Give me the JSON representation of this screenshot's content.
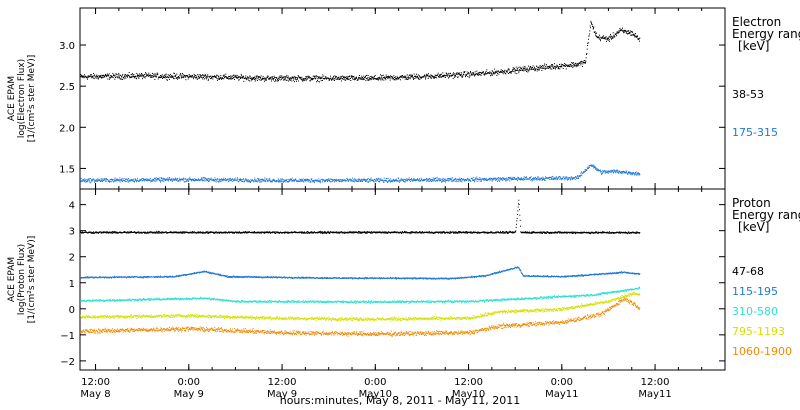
{
  "chart_data": {
    "type": "scatter",
    "x_range": [
      "2011-05-08T10:00",
      "2011-05-11T21:00"
    ],
    "x_ticks": [
      {
        "t": "2011-05-08T12:00",
        "time": "12:00",
        "date": "May 8"
      },
      {
        "t": "2011-05-09T00:00",
        "time": "0:00",
        "date": "May 9"
      },
      {
        "t": "2011-05-09T12:00",
        "time": "12:00",
        "date": "May 9"
      },
      {
        "t": "2011-05-10T00:00",
        "time": "0:00",
        "date": "May10"
      },
      {
        "t": "2011-05-10T12:00",
        "time": "12:00",
        "date": "May10"
      },
      {
        "t": "2011-05-11T00:00",
        "time": "0:00",
        "date": "May11"
      },
      {
        "t": "2011-05-11T12:00",
        "time": "12:00",
        "date": "May11"
      }
    ],
    "xlabel": "hours:minutes, May  8, 2011 - May 11, 2011",
    "panels": [
      {
        "id": "electron",
        "ylabel_lines": [
          "ACE EPAM",
          "log(Electron Flux)",
          "[1/(cm²s ster MeV)]"
        ],
        "ylim": [
          1.25,
          3.45
        ],
        "yticks": [
          1.5,
          2.0,
          2.5,
          3.0
        ],
        "ytick_labels": [
          "1.5",
          "2.0",
          "2.5",
          "3.0"
        ],
        "legend_title": [
          "Electron",
          "Energy ranges",
          "[keV]"
        ],
        "series": [
          {
            "name": "38-53",
            "color": "#000000",
            "points": [
              [
                "2011-05-08T10:00",
                2.62
              ],
              [
                "2011-05-08T18:00",
                2.63
              ],
              [
                "2011-05-09T02:00",
                2.62
              ],
              [
                "2011-05-09T10:00",
                2.6
              ],
              [
                "2011-05-09T18:00",
                2.6
              ],
              [
                "2011-05-10T00:00",
                2.6
              ],
              [
                "2011-05-10T08:00",
                2.63
              ],
              [
                "2011-05-10T14:00",
                2.66
              ],
              [
                "2011-05-10T20:00",
                2.72
              ],
              [
                "2011-05-11T02:00",
                2.77
              ],
              [
                "2011-05-11T03:00",
                2.8
              ],
              [
                "2011-05-11T03:40",
                3.28
              ],
              [
                "2011-05-11T04:30",
                3.1
              ],
              [
                "2011-05-11T06:00",
                3.08
              ],
              [
                "2011-05-11T07:30",
                3.18
              ],
              [
                "2011-05-11T09:00",
                3.15
              ],
              [
                "2011-05-11T10:00",
                3.07
              ]
            ]
          },
          {
            "name": "175-315",
            "color": "#1f78d6",
            "points": [
              [
                "2011-05-08T10:00",
                1.36
              ],
              [
                "2011-05-09T00:00",
                1.37
              ],
              [
                "2011-05-09T12:00",
                1.36
              ],
              [
                "2011-05-10T00:00",
                1.36
              ],
              [
                "2011-05-10T12:00",
                1.37
              ],
              [
                "2011-05-11T02:00",
                1.39
              ],
              [
                "2011-05-11T03:40",
                1.55
              ],
              [
                "2011-05-11T05:00",
                1.46
              ],
              [
                "2011-05-11T07:00",
                1.47
              ],
              [
                "2011-05-11T10:00",
                1.44
              ]
            ]
          }
        ]
      },
      {
        "id": "proton",
        "ylabel_lines": [
          "ACE EPAM",
          "log(Proton Flux)",
          "[1/(cm²s ster MeV)]"
        ],
        "ylim": [
          -2.35,
          4.6
        ],
        "yticks": [
          -2,
          -1,
          0,
          1,
          2,
          3,
          4
        ],
        "ytick_labels": [
          "−2",
          "−1",
          "0",
          "1",
          "2",
          "3",
          "4"
        ],
        "legend_title": [
          "Proton",
          "Energy ranges",
          "[keV]"
        ],
        "series": [
          {
            "name": "47-68",
            "color": "#000000",
            "points": [
              [
                "2011-05-08T10:00",
                2.95
              ],
              [
                "2011-05-10T18:00",
                2.95
              ],
              [
                "2011-05-10T18:25",
                4.2
              ],
              [
                "2011-05-10T18:40",
                2.95
              ],
              [
                "2011-05-11T10:00",
                2.94
              ]
            ]
          },
          {
            "name": "115-195",
            "color": "#1f78d6",
            "points": [
              [
                "2011-05-08T10:00",
                1.22
              ],
              [
                "2011-05-08T22:00",
                1.25
              ],
              [
                "2011-05-09T02:00",
                1.45
              ],
              [
                "2011-05-09T05:00",
                1.25
              ],
              [
                "2011-05-09T18:00",
                1.2
              ],
              [
                "2011-05-10T10:00",
                1.18
              ],
              [
                "2011-05-10T14:00",
                1.28
              ],
              [
                "2011-05-10T18:20",
                1.62
              ],
              [
                "2011-05-10T19:00",
                1.28
              ],
              [
                "2011-05-11T00:00",
                1.25
              ],
              [
                "2011-05-11T05:00",
                1.35
              ],
              [
                "2011-05-11T08:00",
                1.42
              ],
              [
                "2011-05-11T10:00",
                1.35
              ]
            ]
          },
          {
            "name": "310-580",
            "color": "#2ee0d0",
            "points": [
              [
                "2011-05-08T10:00",
                0.32
              ],
              [
                "2011-05-09T02:00",
                0.42
              ],
              [
                "2011-05-09T06:00",
                0.3
              ],
              [
                "2011-05-10T00:00",
                0.28
              ],
              [
                "2011-05-10T12:00",
                0.3
              ],
              [
                "2011-05-10T20:00",
                0.42
              ],
              [
                "2011-05-11T04:00",
                0.55
              ],
              [
                "2011-05-11T08:00",
                0.72
              ],
              [
                "2011-05-11T10:00",
                0.82
              ]
            ]
          },
          {
            "name": "795-1193",
            "color": "#d4e000",
            "points": [
              [
                "2011-05-08T10:00",
                -0.3
              ],
              [
                "2011-05-09T00:00",
                -0.25
              ],
              [
                "2011-05-09T12:00",
                -0.35
              ],
              [
                "2011-05-10T00:00",
                -0.38
              ],
              [
                "2011-05-10T12:00",
                -0.35
              ],
              [
                "2011-05-10T16:00",
                -0.1
              ],
              [
                "2011-05-11T00:00",
                0.0
              ],
              [
                "2011-05-11T06:00",
                0.3
              ],
              [
                "2011-05-11T09:00",
                0.6
              ],
              [
                "2011-05-11T10:00",
                0.55
              ]
            ]
          },
          {
            "name": "1060-1900",
            "color": "#f08a00",
            "points": [
              [
                "2011-05-08T10:00",
                -0.85
              ],
              [
                "2011-05-09T00:00",
                -0.75
              ],
              [
                "2011-05-09T12:00",
                -0.9
              ],
              [
                "2011-05-10T00:00",
                -0.95
              ],
              [
                "2011-05-10T12:00",
                -0.9
              ],
              [
                "2011-05-10T16:00",
                -0.65
              ],
              [
                "2011-05-11T00:00",
                -0.5
              ],
              [
                "2011-05-11T05:00",
                -0.2
              ],
              [
                "2011-05-11T08:00",
                0.4
              ],
              [
                "2011-05-11T09:00",
                0.25
              ],
              [
                "2011-05-11T10:00",
                0.05
              ]
            ]
          }
        ]
      }
    ]
  }
}
